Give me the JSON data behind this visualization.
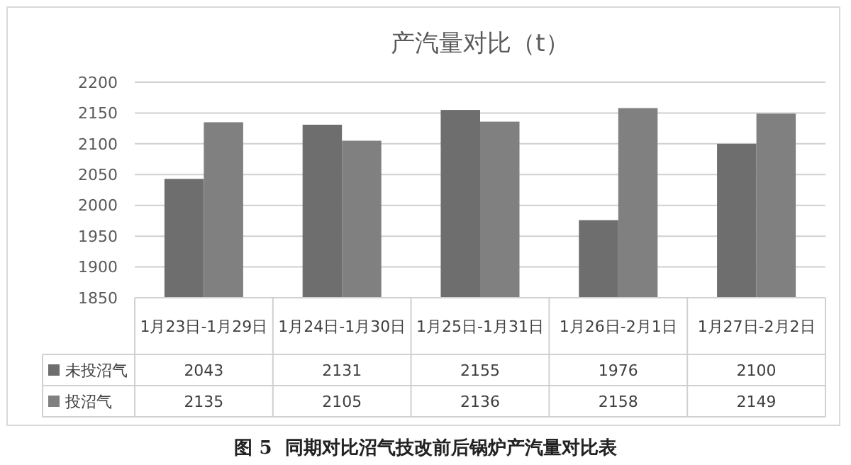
{
  "chart_data": {
    "type": "bar",
    "title": "产汽量对比（t）",
    "categories": [
      "1月23日-1月29日",
      "1月24日-1月30日",
      "1月25日-1月31日",
      "1月26日-2月1日",
      "1月27日-2月2日"
    ],
    "series": [
      {
        "name": "未投沼气",
        "color": "#6e6e6e",
        "values": [
          2043,
          2131,
          2155,
          1976,
          2100
        ]
      },
      {
        "name": "投沼气",
        "color": "#808080",
        "values": [
          2135,
          2105,
          2136,
          2158,
          2149
        ]
      }
    ],
    "ylim": [
      1850,
      2200
    ],
    "yticks": [
      1850,
      1900,
      1950,
      2000,
      2050,
      2100,
      2150,
      2200
    ],
    "grid": "y",
    "legend": "bottom left",
    "data_labels": true,
    "annotations": [
      "图 5  同期对比沼气技改前后锅炉产汽量对比表"
    ]
  }
}
